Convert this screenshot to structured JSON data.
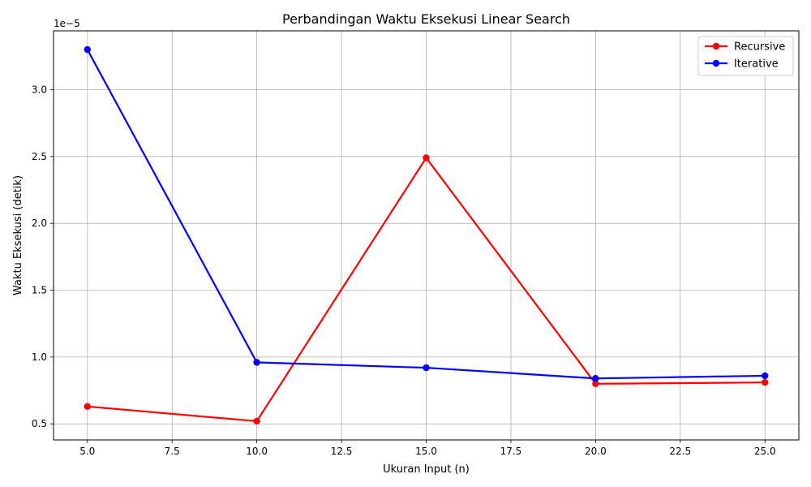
{
  "chart_data": {
    "type": "line",
    "title": "Perbandingan Waktu Eksekusi Linear Search",
    "xlabel": "Ukuran Input (n)",
    "ylabel": "Waktu Eksekusi (detik)",
    "y_offset_label": "1e−5",
    "x": [
      5,
      10,
      15,
      20,
      25
    ],
    "xlim": [
      4,
      26
    ],
    "ylim": [
      0.38,
      3.44
    ],
    "xticks": [
      5.0,
      7.5,
      10.0,
      12.5,
      15.0,
      17.5,
      20.0,
      22.5,
      25.0
    ],
    "xtick_labels": [
      "5.0",
      "7.5",
      "10.0",
      "12.5",
      "15.0",
      "17.5",
      "20.0",
      "22.5",
      "25.0"
    ],
    "yticks": [
      0.5,
      1.0,
      1.5,
      2.0,
      2.5,
      3.0
    ],
    "ytick_labels": [
      "0.5",
      "1.0",
      "1.5",
      "2.0",
      "2.5",
      "3.0"
    ],
    "grid": true,
    "legend_position": "top-right",
    "series": [
      {
        "name": "Recursive",
        "color": "#ff0000",
        "values": [
          0.63,
          0.52,
          2.49,
          0.8,
          0.81
        ]
      },
      {
        "name": "Iterative",
        "color": "#0000ff",
        "values": [
          3.3,
          0.96,
          0.92,
          0.84,
          0.86
        ]
      }
    ]
  }
}
